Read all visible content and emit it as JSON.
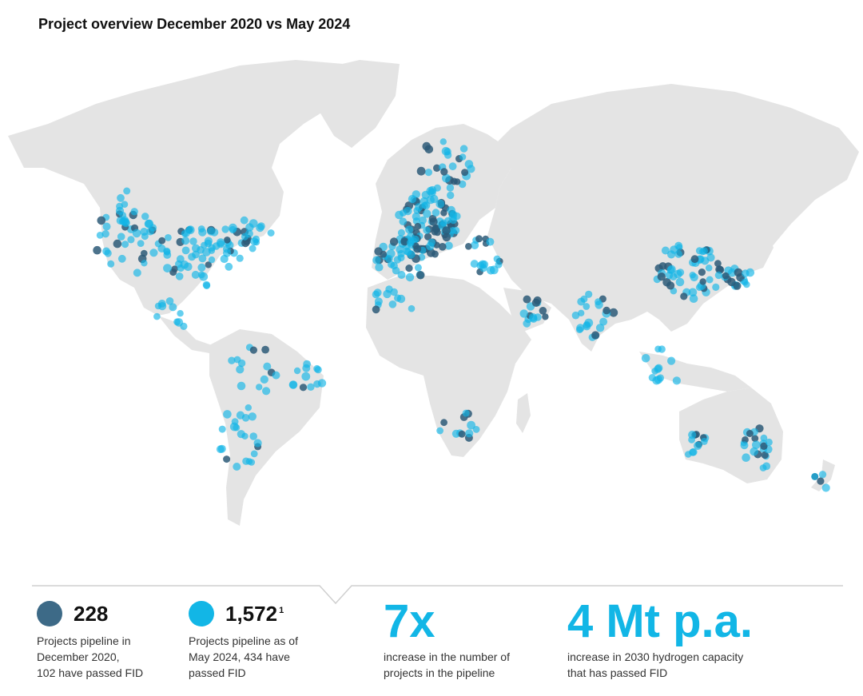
{
  "title": "Project overview December 2020 vs May 2024",
  "colors": {
    "dark_dot": "#2d5a78",
    "light_dot": "#12b6e6",
    "land": "#e4e4e4",
    "accent": "#12b6e6"
  },
  "legend": {
    "dec2020": {
      "number": "228",
      "desc_lines": [
        "Projects pipeline in",
        "December 2020,",
        "102 have passed FID"
      ]
    },
    "may2024": {
      "number": "1,572",
      "footnote": "1",
      "desc_lines": [
        "Projects pipeline as of",
        "May 2024, 434 have",
        "passed FID"
      ]
    }
  },
  "highlights": [
    {
      "value": "7x",
      "desc_lines": [
        "increase in the number of",
        "projects in the pipeline"
      ]
    },
    {
      "value": "4 Mt p.a.",
      "desc_lines": [
        "increase in 2030 hydrogen capacity",
        "that has passed FID"
      ]
    }
  ]
}
